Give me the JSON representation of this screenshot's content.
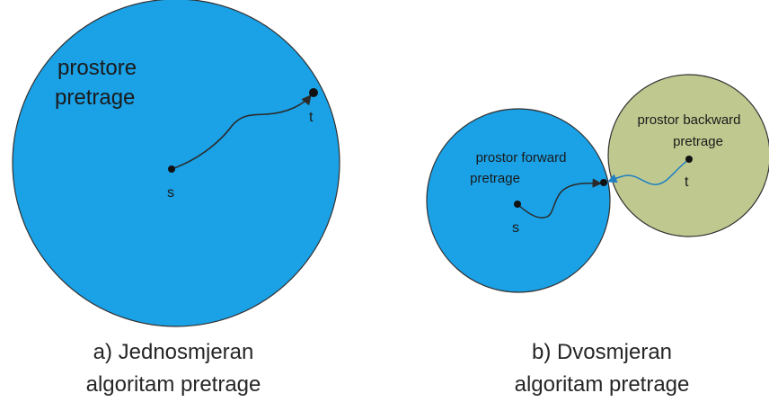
{
  "colors": {
    "forward_region": "#1aa1e6",
    "backward_region": "#bfc98f",
    "region_stroke": "#333333",
    "path_main": "#2b2b2b",
    "path_backward": "#1f7fc2",
    "node": "#111111"
  },
  "panel_a": {
    "region_label_line1": "prostore",
    "region_label_line2": "pretrage",
    "node_s": "s",
    "node_t": "t",
    "caption_line1": "a) Jednosmjeran",
    "caption_line2": "algoritam pretrage"
  },
  "panel_b": {
    "forward_label_line1": "prostor forward",
    "forward_label_line2": "pretrage",
    "backward_label_line1": "prostor backward",
    "backward_label_line2": "pretrage",
    "node_s": "s",
    "node_t": "t",
    "caption_line1": "b) Dvosmjeran",
    "caption_line2": "algoritam pretrage"
  }
}
